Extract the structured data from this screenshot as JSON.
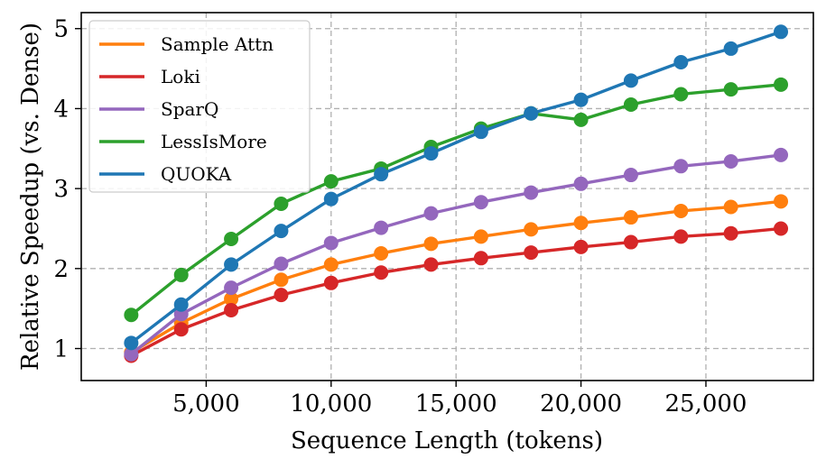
{
  "chart_data": {
    "type": "line",
    "title": "",
    "xlabel": "Sequence Length (tokens)",
    "ylabel": "Relative Speedup (vs. Dense)",
    "xlim": [
      0,
      29300
    ],
    "ylim": [
      0.6,
      5.2
    ],
    "xticks": [
      5000,
      10000,
      15000,
      20000,
      25000
    ],
    "xtick_labels": [
      "5,000",
      "10,000",
      "15,000",
      "20,000",
      "25,000"
    ],
    "yticks": [
      1,
      2,
      3,
      4,
      5
    ],
    "ytick_labels": [
      "1",
      "2",
      "3",
      "4",
      "5"
    ],
    "grid": true,
    "legend_position": "top-left",
    "x": [
      2000,
      4000,
      6000,
      8000,
      10000,
      12000,
      14000,
      16000,
      18000,
      20000,
      22000,
      24000,
      26000,
      28000
    ],
    "series": [
      {
        "name": "Sample Attn",
        "color": "#ff7f0e",
        "values": [
          0.95,
          1.32,
          1.62,
          1.86,
          2.05,
          2.19,
          2.31,
          2.4,
          2.49,
          2.57,
          2.64,
          2.72,
          2.77,
          2.84
        ]
      },
      {
        "name": "Loki",
        "color": "#d62728",
        "values": [
          0.91,
          1.24,
          1.48,
          1.67,
          1.82,
          1.95,
          2.05,
          2.13,
          2.2,
          2.27,
          2.33,
          2.4,
          2.44,
          2.5
        ]
      },
      {
        "name": "SparQ",
        "color": "#9467bd",
        "values": [
          0.93,
          1.43,
          1.76,
          2.06,
          2.32,
          2.51,
          2.69,
          2.83,
          2.95,
          3.06,
          3.17,
          3.28,
          3.34,
          3.42
        ]
      },
      {
        "name": "LessIsMore",
        "color": "#2ca02c",
        "values": [
          1.42,
          1.92,
          2.37,
          2.81,
          3.09,
          3.25,
          3.52,
          3.75,
          3.94,
          3.86,
          4.05,
          4.18,
          4.24,
          4.3
        ]
      },
      {
        "name": "QUOKA",
        "color": "#1f77b4",
        "values": [
          1.07,
          1.55,
          2.05,
          2.47,
          2.87,
          3.18,
          3.44,
          3.71,
          3.94,
          4.11,
          4.35,
          4.58,
          4.75,
          4.96
        ]
      }
    ]
  }
}
